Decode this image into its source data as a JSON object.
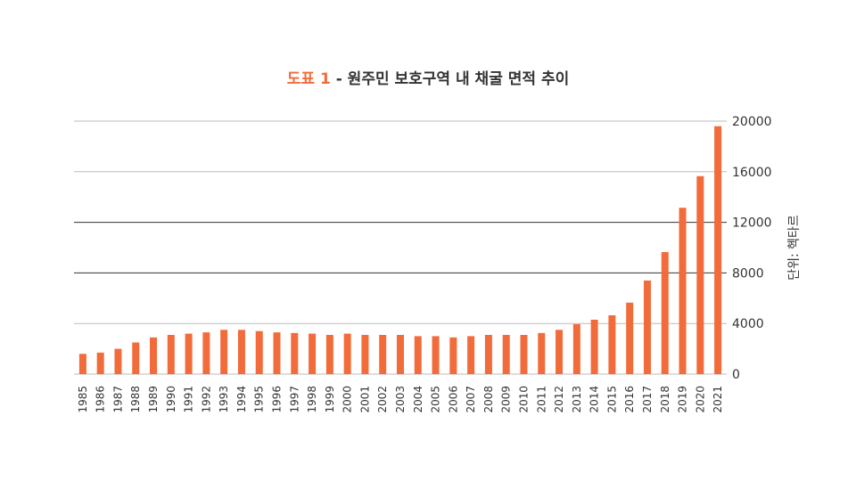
{
  "title": {
    "tag": "도표 1",
    "text": " - 원주민 보호구역 내 채굴 면적 추이"
  },
  "colors": {
    "bar": "#f26b3a",
    "title_tag": "#f26b3a",
    "grid_light": "#bbbbbb",
    "grid_dark": "#333333"
  },
  "chart_data": {
    "type": "bar",
    "ylabel": "단위: 헥타르",
    "ylim": [
      0,
      20000
    ],
    "yticks": [
      0,
      4000,
      8000,
      12000,
      16000,
      20000
    ],
    "y_axis_side": "right",
    "grid": true,
    "categories": [
      "1985",
      "1986",
      "1987",
      "1988",
      "1989",
      "1990",
      "1991",
      "1992",
      "1993",
      "1994",
      "1995",
      "1996",
      "1997",
      "1998",
      "1999",
      "2000",
      "2001",
      "2002",
      "2003",
      "2004",
      "2005",
      "2006",
      "2007",
      "2008",
      "2009",
      "2010",
      "2011",
      "2012",
      "2013",
      "2014",
      "2015",
      "2016",
      "2017",
      "2018",
      "2019",
      "2020",
      "2021"
    ],
    "values": [
      1600,
      1700,
      2000,
      2500,
      2900,
      3100,
      3200,
      3300,
      3500,
      3500,
      3400,
      3300,
      3250,
      3200,
      3100,
      3200,
      3100,
      3100,
      3100,
      3000,
      3000,
      2900,
      3000,
      3100,
      3100,
      3100,
      3250,
      3500,
      3950,
      4300,
      4650,
      5650,
      7400,
      9650,
      13150,
      15650,
      19600
    ]
  }
}
